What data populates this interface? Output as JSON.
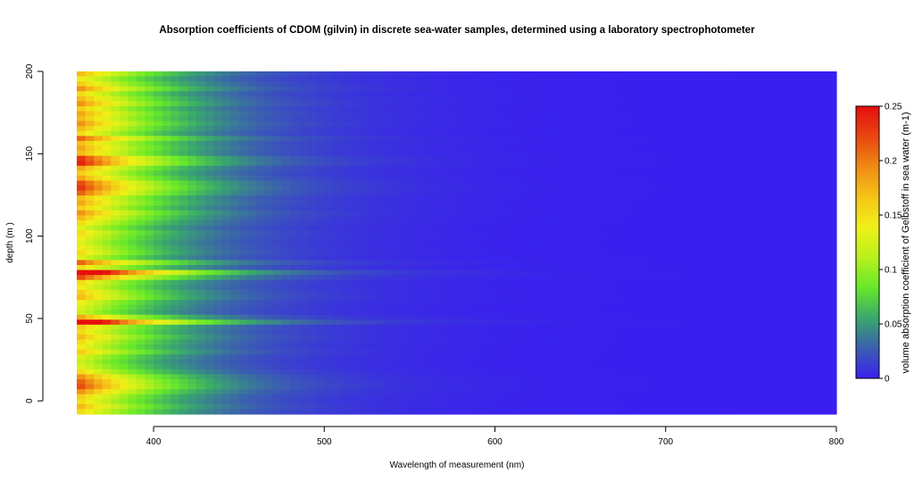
{
  "chart_data": {
    "type": "heatmap",
    "title": "Absorption coefficients of CDOM (gilvin) in discrete sea-water samples, determined using a laboratory spectrophotometer",
    "xlabel": "Wavelength of measurement (nm)",
    "ylabel": "depth (m )",
    "xlim": [
      355,
      800
    ],
    "ylim": [
      -8,
      200
    ],
    "x_ticks": [
      "400",
      "500",
      "600",
      "700",
      "800"
    ],
    "y_ticks": [
      "0",
      "50",
      "100",
      "150",
      "200"
    ],
    "colorbar": {
      "label": "volume absorption coefficient of Gelbstoff in sea water (m-1)",
      "range": [
        0,
        0.25
      ],
      "ticks": [
        "0",
        "0.05",
        "0.1",
        "0.15",
        "0.2",
        "0.25"
      ],
      "colors": [
        "#3a1ff0",
        "#3b5fb0",
        "#39a86c",
        "#66e82a",
        "#b8f01c",
        "#f0f018",
        "#f5c418",
        "#f08a14",
        "#e84610",
        "#e60e0e"
      ],
      "position": "right"
    },
    "wavelength_start": 355,
    "decay_per_nm": 0.0175,
    "samples": [
      {
        "depth": 200,
        "a355": 0.17
      },
      {
        "depth": 197,
        "a355": 0.14
      },
      {
        "depth": 193,
        "a355": 0.16
      },
      {
        "depth": 190,
        "a355": 0.19
      },
      {
        "depth": 187,
        "a355": 0.15
      },
      {
        "depth": 183,
        "a355": 0.17
      },
      {
        "depth": 180,
        "a355": 0.19
      },
      {
        "depth": 177,
        "a355": 0.16
      },
      {
        "depth": 174,
        "a355": 0.18
      },
      {
        "depth": 171,
        "a355": 0.17
      },
      {
        "depth": 168,
        "a355": 0.19
      },
      {
        "depth": 165,
        "a355": 0.17
      },
      {
        "depth": 162,
        "a355": 0.15
      },
      {
        "depth": 159,
        "a355": 0.21
      },
      {
        "depth": 156,
        "a355": 0.17
      },
      {
        "depth": 153,
        "a355": 0.18
      },
      {
        "depth": 150,
        "a355": 0.17
      },
      {
        "depth": 147,
        "a355": 0.23
      },
      {
        "depth": 144,
        "a355": 0.24
      },
      {
        "depth": 141,
        "a355": 0.18
      },
      {
        "depth": 138,
        "a355": 0.16
      },
      {
        "depth": 135,
        "a355": 0.18
      },
      {
        "depth": 132,
        "a355": 0.22
      },
      {
        "depth": 129,
        "a355": 0.23
      },
      {
        "depth": 126,
        "a355": 0.21
      },
      {
        "depth": 123,
        "a355": 0.17
      },
      {
        "depth": 120,
        "a355": 0.18
      },
      {
        "depth": 117,
        "a355": 0.16
      },
      {
        "depth": 114,
        "a355": 0.19
      },
      {
        "depth": 111,
        "a355": 0.17
      },
      {
        "depth": 108,
        "a355": 0.15
      },
      {
        "depth": 105,
        "a355": 0.13
      },
      {
        "depth": 102,
        "a355": 0.15
      },
      {
        "depth": 99,
        "a355": 0.14
      },
      {
        "depth": 96,
        "a355": 0.13
      },
      {
        "depth": 93,
        "a355": 0.14
      },
      {
        "depth": 90,
        "a355": 0.15
      },
      {
        "depth": 87,
        "a355": 0.13
      },
      {
        "depth": 84,
        "a355": 0.21
      },
      {
        "depth": 81,
        "a355": 0.15
      },
      {
        "depth": 78,
        "a355": 0.32
      },
      {
        "depth": 75,
        "a355": 0.22
      },
      {
        "depth": 72,
        "a355": 0.15
      },
      {
        "depth": 69,
        "a355": 0.14
      },
      {
        "depth": 66,
        "a355": 0.16
      },
      {
        "depth": 63,
        "a355": 0.17
      },
      {
        "depth": 60,
        "a355": 0.14
      },
      {
        "depth": 57,
        "a355": 0.13
      },
      {
        "depth": 54,
        "a355": 0.12
      },
      {
        "depth": 51,
        "a355": 0.18
      },
      {
        "depth": 48,
        "a355": 0.31
      },
      {
        "depth": 45,
        "a355": 0.16
      },
      {
        "depth": 42,
        "a355": 0.15
      },
      {
        "depth": 39,
        "a355": 0.17
      },
      {
        "depth": 36,
        "a355": 0.15
      },
      {
        "depth": 33,
        "a355": 0.14
      },
      {
        "depth": 30,
        "a355": 0.16
      },
      {
        "depth": 27,
        "a355": 0.13
      },
      {
        "depth": 24,
        "a355": 0.12
      },
      {
        "depth": 21,
        "a355": 0.13
      },
      {
        "depth": 18,
        "a355": 0.15
      },
      {
        "depth": 15,
        "a355": 0.19
      },
      {
        "depth": 12,
        "a355": 0.21
      },
      {
        "depth": 9,
        "a355": 0.22
      },
      {
        "depth": 6,
        "a355": 0.19
      },
      {
        "depth": 3,
        "a355": 0.16
      },
      {
        "depth": 0,
        "a355": 0.15
      },
      {
        "depth": -3,
        "a355": 0.17
      },
      {
        "depth": -6,
        "a355": 0.15
      }
    ]
  }
}
